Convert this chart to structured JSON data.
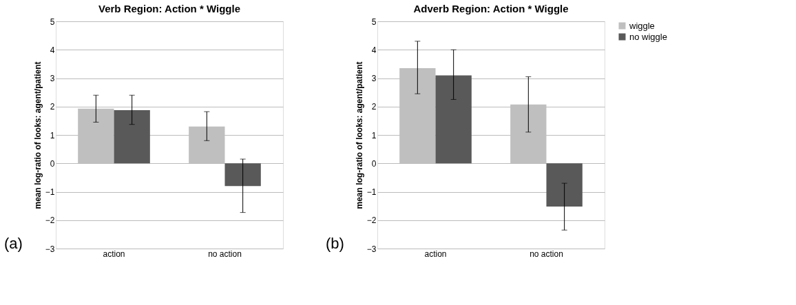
{
  "chart_data": [
    {
      "type": "bar",
      "title": "Verb Region: Action * Wiggle",
      "ylabel": "mean log-ratio of looks: agent/patient",
      "categories": [
        "action",
        "no action"
      ],
      "series": [
        {
          "name": "wiggle",
          "color": "#bfbfbf",
          "values": [
            1.93,
            1.3
          ],
          "errors": [
            [
              1.45,
              2.4
            ],
            [
              0.8,
              1.82
            ]
          ]
        },
        {
          "name": "no wiggle",
          "color": "#595959",
          "values": [
            1.87,
            -0.8
          ],
          "errors": [
            [
              1.37,
              2.4
            ],
            [
              -1.73,
              0.15
            ]
          ]
        }
      ],
      "ylim": [
        -3,
        5
      ],
      "yticks": [
        -3,
        -2,
        -1,
        0,
        1,
        2,
        3,
        4,
        5
      ],
      "grid": "y",
      "legend": "right",
      "annotations": [
        "(a)"
      ]
    },
    {
      "type": "bar",
      "title": "Adverb Region: Action * Wiggle",
      "ylabel": "mean log-ratio of looks: agent/patient",
      "categories": [
        "action",
        "no action"
      ],
      "series": [
        {
          "name": "wiggle",
          "color": "#bfbfbf",
          "values": [
            3.35,
            2.07
          ],
          "errors": [
            [
              2.45,
              4.3
            ],
            [
              1.1,
              3.05
            ]
          ]
        },
        {
          "name": "no wiggle",
          "color": "#595959",
          "values": [
            3.1,
            -1.52
          ],
          "errors": [
            [
              2.25,
              4.0
            ],
            [
              -2.35,
              -0.7
            ]
          ]
        }
      ],
      "ylim": [
        -3,
        5
      ],
      "yticks": [
        -3,
        -2,
        -1,
        0,
        1,
        2,
        3,
        4,
        5
      ],
      "grid": "y",
      "legend": "right",
      "annotations": [
        "(b)"
      ]
    }
  ]
}
